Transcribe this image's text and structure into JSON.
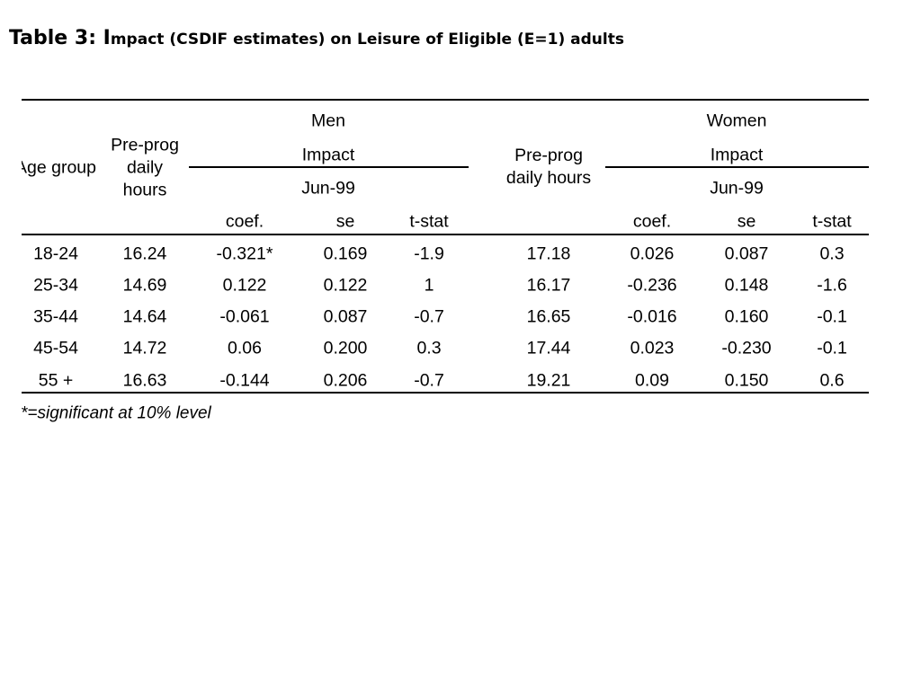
{
  "title": {
    "prefix": "Table 3: I",
    "rest": "mpact (CSDIF estimates) on Leisure  of Eligible (E=1) adults"
  },
  "table": {
    "headers": {
      "age_group": "Age group",
      "men_pre_prog": [
        "Pre-prog",
        "daily",
        "hours"
      ],
      "women_pre_prog": [
        "Pre-prog",
        "daily hours"
      ],
      "men_group": "Men",
      "women_group": "Women",
      "men_impact": "Impact",
      "women_impact": "Impact",
      "men_date": "Jun-99",
      "women_date": "Jun-99",
      "men_coef": "coef.",
      "men_se": "se",
      "men_tstat": "t-stat",
      "women_coef": "coef.",
      "women_se": "se",
      "women_tstat": "t-stat"
    },
    "rows": [
      [
        "18-24",
        "16.24",
        "-0.321*",
        "0.169",
        "-1.9",
        "17.18",
        "0.026",
        "0.087",
        "0.3"
      ],
      [
        "25-34",
        "14.69",
        "0.122",
        "0.122",
        "1",
        "16.17",
        "-0.236",
        "0.148",
        "-1.6"
      ],
      [
        "35-44",
        "14.64",
        "-0.061",
        "0.087",
        "-0.7",
        "16.65",
        "-0.016",
        "0.160",
        "-0.1"
      ],
      [
        "45-54",
        "14.72",
        "0.06",
        "0.200",
        "0.3",
        "17.44",
        "0.023",
        "-0.230",
        "-0.1"
      ],
      [
        "55 +",
        "16.63",
        "-0.144",
        "0.206",
        "-0.7",
        "19.21",
        "0.09",
        "0.150",
        "0.6"
      ]
    ]
  },
  "footnote": "*=significant at 10% level"
}
